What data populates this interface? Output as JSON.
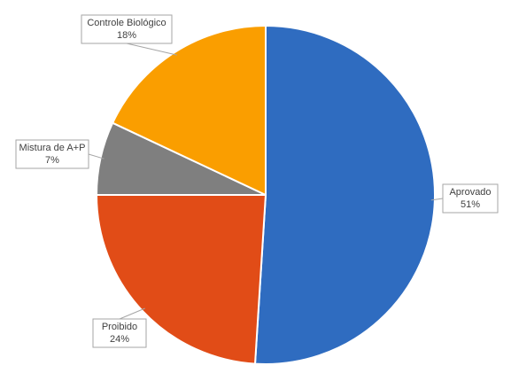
{
  "chart_data": {
    "type": "pie",
    "categories": [
      "Aprovado",
      "Proibido",
      "Mistura de A+P",
      "Controle Biológico"
    ],
    "values": [
      51,
      24,
      7,
      18
    ],
    "value_labels": [
      "51%",
      "24%",
      "7%",
      "18%"
    ],
    "colors": [
      "#2f6cc0",
      "#e14c17",
      "#7f7f7f",
      "#fa9e00"
    ]
  }
}
